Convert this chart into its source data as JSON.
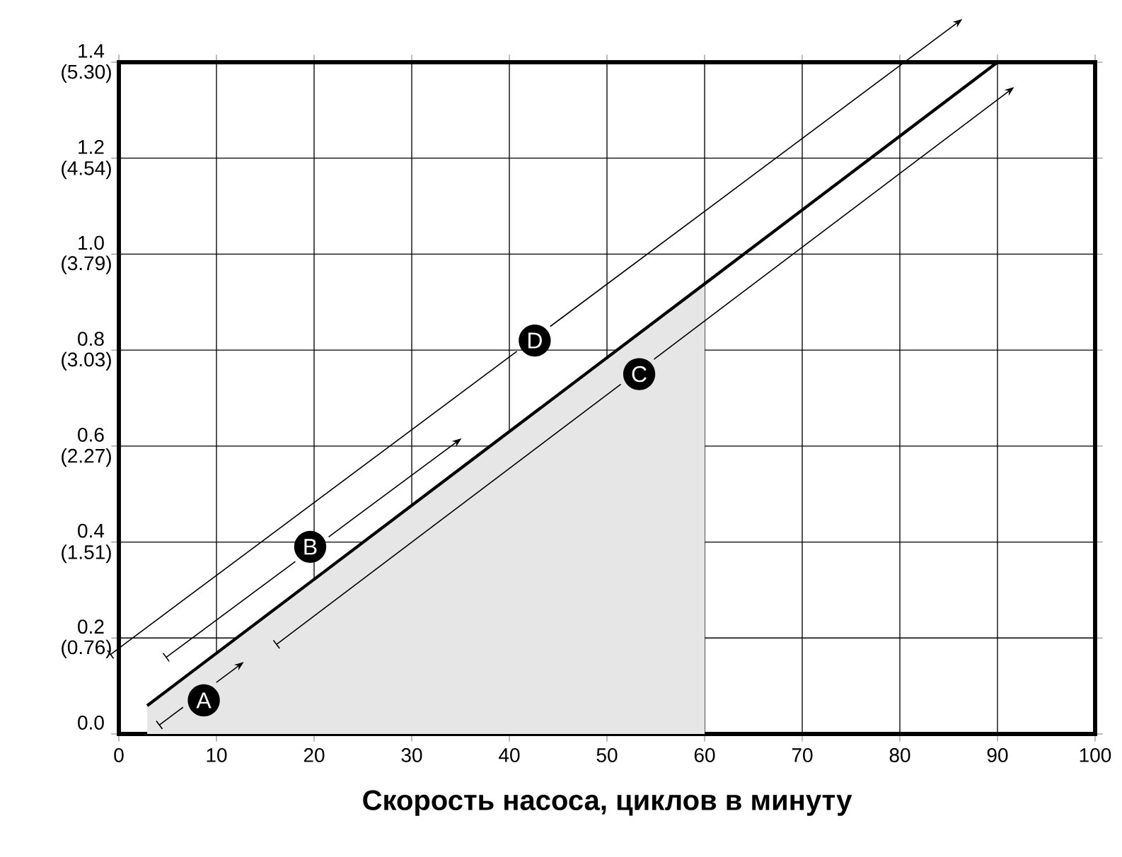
{
  "chart_data": {
    "type": "line",
    "xlabel": "Скорость насоса, циклов в минуту",
    "xlim": [
      0,
      100
    ],
    "ylim": [
      0,
      1.4
    ],
    "xticks": [
      0,
      10,
      20,
      30,
      40,
      50,
      60,
      70,
      80,
      90,
      100
    ],
    "yticks": [
      {
        "value": 0,
        "label": "0.0"
      },
      0.2,
      0.4,
      0.6,
      0.8,
      {
        "value": 1,
        "label": "1.0"
      },
      1.2,
      1.4
    ],
    "y2lim": [
      0,
      5.3
    ],
    "y2ticks": [
      {
        "value": 0.76,
        "label": "(0.76)"
      },
      {
        "value": 1.51,
        "label": "(1.51)"
      },
      {
        "value": 2.27,
        "label": "(2.27)"
      },
      {
        "value": 3.03,
        "label": "(3.03)"
      },
      {
        "value": 3.79,
        "label": "(3.79)"
      },
      {
        "value": 4.54,
        "label": "(4.54)"
      },
      {
        "value": 5.3,
        "label": "(5.30)"
      }
    ],
    "grid": true,
    "series": [
      {
        "type": "area",
        "color": "#e6e6e6",
        "x": [
          2.9,
          60
        ],
        "values": [
          0.059,
          0.938
        ]
      },
      {
        "color": "#000000",
        "x": [
          2.9,
          90
        ],
        "values": [
          0.059,
          1.4
        ]
      }
    ],
    "annotations": [
      {
        "text": "A",
        "x": 8.7,
        "y": 0.07
      },
      {
        "text": "B",
        "x": 19.6,
        "y": 0.39
      },
      {
        "text": "C",
        "x": 53.3,
        "y": 0.75
      },
      {
        "text": "D",
        "x": 42.6,
        "y": 0.82
      }
    ]
  }
}
